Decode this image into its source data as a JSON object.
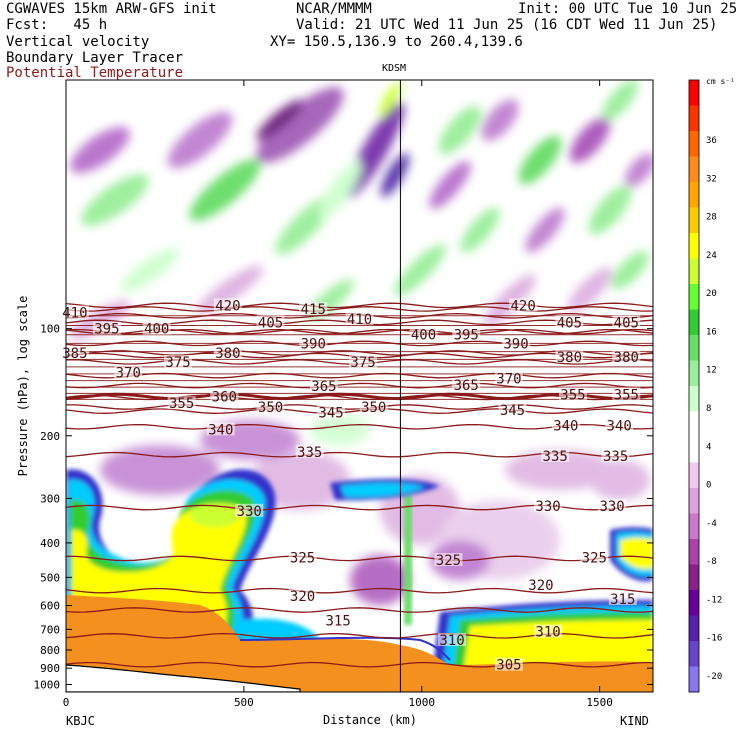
{
  "header": {
    "left_line1": "CGWAVES 15km ARW-GFS init",
    "left_line2": "Fcst:   45 h",
    "fields": [
      "Vertical velocity",
      "Boundary Layer Tracer",
      "Potential Temperature"
    ],
    "center_line1": "NCAR/MMMM",
    "init_text": "Init: 00 UTC Tue 10 Jun 25",
    "valid_text": "Valid: 21 UTC Wed 11 Jun 25 (16 CDT Wed 11 Jun 25)",
    "xy_text": "XY= 150.5,136.9 to 260.4,139.6",
    "field_colors": [
      "#000000",
      "#000000",
      "#8b1a1a"
    ]
  },
  "chart_data": {
    "type": "heatmap",
    "title": "",
    "xlabel": "Distance (km)",
    "ylabel": "Pressure (hPa), log scale",
    "x_ticks": [
      0,
      500,
      1000,
      1500
    ],
    "xlim": [
      0,
      1650
    ],
    "y_ticks": [
      100,
      200,
      300,
      400,
      500,
      600,
      700,
      800,
      900,
      1000
    ],
    "ylim": [
      1050,
      20
    ],
    "y_scale": "log",
    "left_station": "KBJC",
    "right_station": "KIND",
    "marker_station": "KDSM",
    "marker_x_km": 940,
    "colorbar": {
      "unit": "cm s⁻¹",
      "ticks": [
        36,
        32,
        28,
        24,
        20,
        16,
        12,
        8,
        4,
        0,
        -4,
        -8,
        -12,
        -16,
        -20
      ],
      "colors": [
        "#ff0000",
        "#ff3300",
        "#ff6600",
        "#ff8c1a",
        "#ffa500",
        "#ffcc00",
        "#ffff00",
        "#ccff33",
        "#66ff33",
        "#33cc33",
        "#66dd66",
        "#99ee99",
        "#ccffcc",
        "#ffffff",
        "#ffffff",
        "#f0c8f0",
        "#e0a0e0",
        "#cc77cc",
        "#aa44aa",
        "#882288",
        "#660099",
        "#5522aa",
        "#6644cc",
        "#8877ee"
      ]
    },
    "theta_contour_color": "#8b1a1a",
    "theta_labels": [
      {
        "text": "410",
        "x": 25,
        "p": 90
      },
      {
        "text": "395",
        "x": 115,
        "p": 100
      },
      {
        "text": "400",
        "x": 255,
        "p": 100
      },
      {
        "text": "420",
        "x": 455,
        "p": 86
      },
      {
        "text": "405",
        "x": 575,
        "p": 96
      },
      {
        "text": "415",
        "x": 695,
        "p": 88
      },
      {
        "text": "410",
        "x": 825,
        "p": 94
      },
      {
        "text": "420",
        "x": 1285,
        "p": 86
      },
      {
        "text": "405",
        "x": 1415,
        "p": 96
      },
      {
        "text": "405",
        "x": 1575,
        "p": 96
      },
      {
        "text": "385",
        "x": 25,
        "p": 117
      },
      {
        "text": "375",
        "x": 315,
        "p": 124
      },
      {
        "text": "380",
        "x": 455,
        "p": 117
      },
      {
        "text": "390",
        "x": 695,
        "p": 110
      },
      {
        "text": "375",
        "x": 835,
        "p": 124
      },
      {
        "text": "400",
        "x": 1005,
        "p": 104
      },
      {
        "text": "395",
        "x": 1125,
        "p": 104
      },
      {
        "text": "390",
        "x": 1265,
        "p": 110
      },
      {
        "text": "380",
        "x": 1415,
        "p": 120
      },
      {
        "text": "380",
        "x": 1575,
        "p": 120
      },
      {
        "text": "370",
        "x": 175,
        "p": 133
      },
      {
        "text": "365",
        "x": 725,
        "p": 145
      },
      {
        "text": "365",
        "x": 1125,
        "p": 144
      },
      {
        "text": "370",
        "x": 1245,
        "p": 138
      },
      {
        "text": "360",
        "x": 445,
        "p": 155
      },
      {
        "text": "355",
        "x": 325,
        "p": 162
      },
      {
        "text": "355",
        "x": 1425,
        "p": 153
      },
      {
        "text": "355",
        "x": 1575,
        "p": 153
      },
      {
        "text": "350",
        "x": 575,
        "p": 166
      },
      {
        "text": "345",
        "x": 745,
        "p": 172
      },
      {
        "text": "350",
        "x": 865,
        "p": 166
      },
      {
        "text": "345",
        "x": 1255,
        "p": 169
      },
      {
        "text": "340",
        "x": 1405,
        "p": 187
      },
      {
        "text": "340",
        "x": 1555,
        "p": 187
      },
      {
        "text": "340",
        "x": 435,
        "p": 192
      },
      {
        "text": "335",
        "x": 685,
        "p": 222
      },
      {
        "text": "335",
        "x": 1375,
        "p": 228
      },
      {
        "text": "335",
        "x": 1545,
        "p": 228
      },
      {
        "text": "330",
        "x": 515,
        "p": 325
      },
      {
        "text": "330",
        "x": 1355,
        "p": 315
      },
      {
        "text": "330",
        "x": 1535,
        "p": 315
      },
      {
        "text": "325",
        "x": 665,
        "p": 440
      },
      {
        "text": "325",
        "x": 1075,
        "p": 447
      },
      {
        "text": "325",
        "x": 1485,
        "p": 440
      },
      {
        "text": "320",
        "x": 665,
        "p": 565
      },
      {
        "text": "320",
        "x": 1335,
        "p": 525
      },
      {
        "text": "315",
        "x": 1565,
        "p": 575
      },
      {
        "text": "315",
        "x": 765,
        "p": 660
      },
      {
        "text": "310",
        "x": 1085,
        "p": 750
      },
      {
        "text": "310",
        "x": 1355,
        "p": 710
      },
      {
        "text": "305",
        "x": 1245,
        "p": 880
      }
    ]
  }
}
